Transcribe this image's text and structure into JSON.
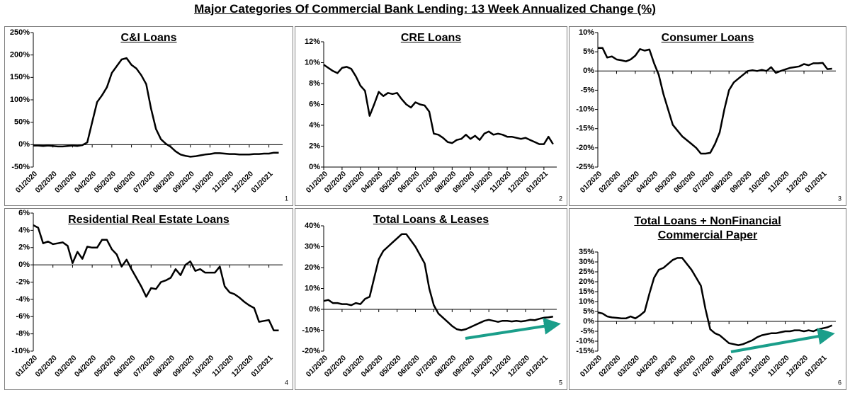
{
  "title": "Major Categories Of Commercial Bank Lending: 13 Week Annualized Change (%)",
  "chart_data": [
    {
      "type": "line",
      "title": "C&I Loans",
      "panel_label": "1",
      "color": "#000000",
      "x": [
        0,
        0.25,
        0.5,
        0.75,
        1,
        1.25,
        1.5,
        1.75,
        2,
        2.25,
        2.5,
        2.75,
        3,
        3.25,
        3.5,
        3.75,
        4,
        4.25,
        4.5,
        4.75,
        5,
        5.25,
        5.5,
        5.75,
        6,
        6.25,
        6.5,
        6.75,
        7,
        7.25,
        7.5,
        7.75,
        8,
        8.25,
        8.5,
        8.75,
        9,
        9.25,
        9.5,
        9.75,
        10,
        10.25,
        10.5,
        10.75,
        11,
        11.25,
        11.5,
        11.75,
        12,
        12.25,
        12.5
      ],
      "values": [
        -2,
        -2,
        -3,
        -2,
        -3,
        -4,
        -4,
        -3,
        -2,
        -3,
        -1,
        5,
        50,
        95,
        110,
        128,
        160,
        175,
        190,
        193,
        178,
        170,
        155,
        135,
        80,
        35,
        12,
        2,
        -5,
        -15,
        -22,
        -25,
        -27,
        -26,
        -24,
        -22,
        -21,
        -19,
        -19,
        -20,
        -21,
        -21,
        -22,
        -22,
        -22,
        -21,
        -21,
        -20,
        -20,
        -18,
        -18
      ],
      "xlim": [
        0,
        12.7
      ],
      "xticks": [
        {
          "value": 0,
          "label": "01/2020"
        },
        {
          "value": 1,
          "label": "02/2020"
        },
        {
          "value": 2,
          "label": "03/2020"
        },
        {
          "value": 3,
          "label": "04/2020"
        },
        {
          "value": 4,
          "label": "05/2020"
        },
        {
          "value": 5,
          "label": "06/2020"
        },
        {
          "value": 6,
          "label": "07/2020"
        },
        {
          "value": 7,
          "label": "08/2020"
        },
        {
          "value": 8,
          "label": "09/2020"
        },
        {
          "value": 9,
          "label": "10/2020"
        },
        {
          "value": 10,
          "label": "11/2020"
        },
        {
          "value": 11,
          "label": "12/2020"
        },
        {
          "value": 12,
          "label": "01/2021"
        }
      ],
      "ylim": [
        -50,
        250
      ],
      "yticks": [
        {
          "value": -50,
          "label": "-50%"
        },
        {
          "value": 0,
          "label": "0%"
        },
        {
          "value": 50,
          "label": "50%"
        },
        {
          "value": 100,
          "label": "100%"
        },
        {
          "value": 150,
          "label": "150%"
        },
        {
          "value": 200,
          "label": "200%"
        },
        {
          "value": 250,
          "label": "250%"
        }
      ]
    },
    {
      "type": "line",
      "title": "CRE Loans",
      "panel_label": "2",
      "color": "#000000",
      "x": [
        0,
        0.25,
        0.5,
        0.75,
        1,
        1.25,
        1.5,
        1.75,
        2,
        2.25,
        2.5,
        2.75,
        3,
        3.25,
        3.5,
        3.75,
        4,
        4.25,
        4.5,
        4.75,
        5,
        5.25,
        5.5,
        5.75,
        6,
        6.25,
        6.5,
        6.75,
        7,
        7.25,
        7.5,
        7.75,
        8,
        8.25,
        8.5,
        8.75,
        9,
        9.25,
        9.5,
        9.75,
        10,
        10.25,
        10.5,
        10.75,
        11,
        11.25,
        11.5,
        11.75,
        12,
        12.25,
        12.5
      ],
      "values": [
        9.8,
        9.5,
        9.2,
        9.0,
        9.5,
        9.6,
        9.4,
        8.7,
        7.8,
        7.3,
        4.9,
        6.0,
        7.2,
        6.8,
        7.1,
        7.0,
        7.1,
        6.5,
        6.0,
        5.7,
        6.2,
        6.0,
        5.9,
        5.3,
        3.2,
        3.1,
        2.8,
        2.4,
        2.3,
        2.6,
        2.7,
        3.1,
        2.7,
        3.0,
        2.6,
        3.2,
        3.4,
        3.1,
        3.2,
        3.1,
        2.9,
        2.9,
        2.8,
        2.7,
        2.8,
        2.6,
        2.4,
        2.2,
        2.2,
        2.9,
        2.2
      ],
      "xlim": [
        0,
        12.7
      ],
      "xticks": [
        {
          "value": 0,
          "label": "01/2020"
        },
        {
          "value": 1,
          "label": "02/2020"
        },
        {
          "value": 2,
          "label": "03/2020"
        },
        {
          "value": 3,
          "label": "04/2020"
        },
        {
          "value": 4,
          "label": "05/2020"
        },
        {
          "value": 5,
          "label": "06/2020"
        },
        {
          "value": 6,
          "label": "07/2020"
        },
        {
          "value": 7,
          "label": "08/2020"
        },
        {
          "value": 8,
          "label": "09/2020"
        },
        {
          "value": 9,
          "label": "10/2020"
        },
        {
          "value": 10,
          "label": "11/2020"
        },
        {
          "value": 11,
          "label": "12/2020"
        },
        {
          "value": 12,
          "label": "01/2021"
        }
      ],
      "ylim": [
        0,
        12
      ],
      "yticks": [
        {
          "value": 0,
          "label": "0%"
        },
        {
          "value": 2,
          "label": "2%"
        },
        {
          "value": 4,
          "label": "4%"
        },
        {
          "value": 6,
          "label": "6%"
        },
        {
          "value": 8,
          "label": "8%"
        },
        {
          "value": 10,
          "label": "10%"
        },
        {
          "value": 12,
          "label": "12%"
        }
      ]
    },
    {
      "type": "line",
      "title": "Consumer Loans",
      "panel_label": "3",
      "color": "#000000",
      "x": [
        0,
        0.25,
        0.5,
        0.75,
        1,
        1.25,
        1.5,
        1.75,
        2,
        2.25,
        2.5,
        2.75,
        3,
        3.25,
        3.5,
        3.75,
        4,
        4.25,
        4.5,
        4.75,
        5,
        5.25,
        5.5,
        5.75,
        6,
        6.25,
        6.5,
        6.75,
        7,
        7.25,
        7.5,
        7.75,
        8,
        8.25,
        8.5,
        8.75,
        9,
        9.25,
        9.5,
        9.75,
        10,
        10.25,
        10.5,
        10.75,
        11,
        11.25,
        11.5,
        11.75,
        12,
        12.25,
        12.5
      ],
      "values": [
        6,
        6,
        3.5,
        3.8,
        3,
        2.8,
        2.5,
        3,
        4,
        5.7,
        5.3,
        5.6,
        2,
        -1,
        -6,
        -10,
        -14,
        -15.5,
        -17,
        -18,
        -19,
        -20,
        -21.5,
        -21.5,
        -21.3,
        -19,
        -16,
        -10,
        -5,
        -3,
        -2,
        -1,
        0,
        0.2,
        0,
        0.3,
        0,
        1,
        -0.5,
        0,
        0.4,
        0.8,
        1,
        1.2,
        1.8,
        1.5,
        2,
        2,
        2.1,
        0.5,
        0.6
      ],
      "xlim": [
        0,
        12.7
      ],
      "xticks": [
        {
          "value": 0,
          "label": "01/2020"
        },
        {
          "value": 1,
          "label": "02/2020"
        },
        {
          "value": 2,
          "label": "03/2020"
        },
        {
          "value": 3,
          "label": "04/2020"
        },
        {
          "value": 4,
          "label": "05/2020"
        },
        {
          "value": 5,
          "label": "06/2020"
        },
        {
          "value": 6,
          "label": "07/2020"
        },
        {
          "value": 7,
          "label": "08/2020"
        },
        {
          "value": 8,
          "label": "09/2020"
        },
        {
          "value": 9,
          "label": "10/2020"
        },
        {
          "value": 10,
          "label": "11/2020"
        },
        {
          "value": 11,
          "label": "12/2020"
        },
        {
          "value": 12,
          "label": "01/2021"
        }
      ],
      "ylim": [
        -25,
        10
      ],
      "yticks": [
        {
          "value": -25,
          "label": "-25%"
        },
        {
          "value": -20,
          "label": "-20%"
        },
        {
          "value": -15,
          "label": "-15%"
        },
        {
          "value": -10,
          "label": "-10%"
        },
        {
          "value": -5,
          "label": "-5%"
        },
        {
          "value": 0,
          "label": "0%"
        },
        {
          "value": 5,
          "label": "5%"
        },
        {
          "value": 10,
          "label": "10%"
        }
      ]
    },
    {
      "type": "line",
      "title": "Residential Real Estate Loans",
      "panel_label": "4",
      "color": "#000000",
      "x": [
        0,
        0.25,
        0.5,
        0.75,
        1,
        1.25,
        1.5,
        1.75,
        2,
        2.25,
        2.5,
        2.75,
        3,
        3.25,
        3.5,
        3.75,
        4,
        4.25,
        4.5,
        4.75,
        5,
        5.25,
        5.5,
        5.75,
        6,
        6.25,
        6.5,
        6.75,
        7,
        7.25,
        7.5,
        7.75,
        8,
        8.25,
        8.5,
        8.75,
        9,
        9.25,
        9.5,
        9.75,
        10,
        10.25,
        10.5,
        10.75,
        11,
        11.25,
        11.5,
        11.75,
        12,
        12.25,
        12.5
      ],
      "values": [
        4.6,
        4.3,
        2.5,
        2.7,
        2.4,
        2.5,
        2.6,
        2.2,
        0.2,
        1.5,
        0.7,
        2.1,
        2.0,
        2.0,
        2.9,
        2.9,
        1.8,
        1.2,
        -0.2,
        0.6,
        -0.5,
        -1.5,
        -2.5,
        -3.7,
        -2.7,
        -2.8,
        -2.0,
        -1.8,
        -1.5,
        -0.5,
        -1.2,
        0,
        0.4,
        -0.7,
        -0.5,
        -0.9,
        -0.9,
        -0.9,
        -0.2,
        -2.5,
        -3.2,
        -3.4,
        -3.8,
        -4.3,
        -4.7,
        -5.0,
        -6.6,
        -6.5,
        -6.4,
        -7.6,
        -7.6
      ],
      "xlim": [
        0,
        12.7
      ],
      "xticks": [
        {
          "value": 0,
          "label": "01/2020"
        },
        {
          "value": 1,
          "label": "02/2020"
        },
        {
          "value": 2,
          "label": "03/2020"
        },
        {
          "value": 3,
          "label": "04/2020"
        },
        {
          "value": 4,
          "label": "05/2020"
        },
        {
          "value": 5,
          "label": "06/2020"
        },
        {
          "value": 6,
          "label": "07/2020"
        },
        {
          "value": 7,
          "label": "08/2020"
        },
        {
          "value": 8,
          "label": "09/2020"
        },
        {
          "value": 9,
          "label": "10/2020"
        },
        {
          "value": 10,
          "label": "11/2020"
        },
        {
          "value": 11,
          "label": "12/2020"
        },
        {
          "value": 12,
          "label": "01/2021"
        }
      ],
      "ylim": [
        -10,
        6
      ],
      "yticks": [
        {
          "value": -10,
          "label": "-10%"
        },
        {
          "value": -8,
          "label": "-8%"
        },
        {
          "value": -6,
          "label": "-6%"
        },
        {
          "value": -4,
          "label": "-4%"
        },
        {
          "value": -2,
          "label": "-2%"
        },
        {
          "value": 0,
          "label": "0%"
        },
        {
          "value": 2,
          "label": "2%"
        },
        {
          "value": 4,
          "label": "4%"
        },
        {
          "value": 6,
          "label": "6%"
        }
      ]
    },
    {
      "type": "line",
      "title": "Total Loans & Leases",
      "panel_label": "5",
      "color": "#000000",
      "x": [
        0,
        0.25,
        0.5,
        0.75,
        1,
        1.25,
        1.5,
        1.75,
        2,
        2.25,
        2.5,
        2.75,
        3,
        3.25,
        3.5,
        3.75,
        4,
        4.25,
        4.5,
        4.75,
        5,
        5.25,
        5.5,
        5.75,
        6,
        6.25,
        6.5,
        6.75,
        7,
        7.25,
        7.5,
        7.75,
        8,
        8.25,
        8.5,
        8.75,
        9,
        9.25,
        9.5,
        9.75,
        10,
        10.25,
        10.5,
        10.75,
        11,
        11.25,
        11.5,
        11.75,
        12,
        12.25,
        12.5
      ],
      "values": [
        4,
        4.5,
        3,
        3,
        2.5,
        2.5,
        2,
        3,
        2.5,
        5,
        6,
        15,
        24,
        28,
        30,
        32,
        34,
        36,
        36,
        33,
        30,
        26,
        22,
        10,
        2,
        -2,
        -4,
        -6,
        -8,
        -9.5,
        -10,
        -9.5,
        -8.5,
        -7.5,
        -6.5,
        -5.5,
        -5,
        -5.5,
        -6,
        -5.5,
        -5.5,
        -5.8,
        -5.5,
        -5.8,
        -5.5,
        -5,
        -5.2,
        -4.5,
        -4,
        -3.8,
        -3.5
      ],
      "xlim": [
        0,
        12.7
      ],
      "xticks": [
        {
          "value": 0,
          "label": "01/2020"
        },
        {
          "value": 1,
          "label": "02/2020"
        },
        {
          "value": 2,
          "label": "03/2020"
        },
        {
          "value": 3,
          "label": "04/2020"
        },
        {
          "value": 4,
          "label": "05/2020"
        },
        {
          "value": 5,
          "label": "06/2020"
        },
        {
          "value": 6,
          "label": "07/2020"
        },
        {
          "value": 7,
          "label": "08/2020"
        },
        {
          "value": 8,
          "label": "09/2020"
        },
        {
          "value": 9,
          "label": "10/2020"
        },
        {
          "value": 10,
          "label": "11/2020"
        },
        {
          "value": 11,
          "label": "12/2020"
        },
        {
          "value": 12,
          "label": "01/2021"
        }
      ],
      "ylim": [
        -20,
        40
      ],
      "yticks": [
        {
          "value": -20,
          "label": "-20%"
        },
        {
          "value": -10,
          "label": "-10%"
        },
        {
          "value": 0,
          "label": "0%"
        },
        {
          "value": 10,
          "label": "10%"
        },
        {
          "value": 20,
          "label": "20%"
        },
        {
          "value": 30,
          "label": "30%"
        },
        {
          "value": 40,
          "label": "40%"
        }
      ]
    },
    {
      "type": "line",
      "title": "Total Loans + NonFinancial Commercial Paper",
      "panel_label": "6",
      "color": "#000000",
      "x": [
        0,
        0.25,
        0.5,
        0.75,
        1,
        1.25,
        1.5,
        1.75,
        2,
        2.25,
        2.5,
        2.75,
        3,
        3.25,
        3.5,
        3.75,
        4,
        4.25,
        4.5,
        4.75,
        5,
        5.25,
        5.5,
        5.75,
        6,
        6.25,
        6.5,
        6.75,
        7,
        7.25,
        7.5,
        7.75,
        8,
        8.25,
        8.5,
        8.75,
        9,
        9.25,
        9.5,
        9.75,
        10,
        10.25,
        10.5,
        10.75,
        11,
        11.25,
        11.5,
        11.75,
        12,
        12.25,
        12.5
      ],
      "values": [
        4.5,
        4,
        2.5,
        2,
        1.8,
        1.5,
        1.5,
        2.5,
        1.5,
        3,
        5,
        14,
        22,
        26,
        27,
        29,
        31,
        32,
        32,
        29,
        26,
        22,
        18,
        6,
        -4,
        -6,
        -7,
        -9,
        -11,
        -11.5,
        -12,
        -11.5,
        -10.5,
        -9.5,
        -8,
        -7,
        -6.5,
        -6,
        -6,
        -5.5,
        -5,
        -5,
        -4.5,
        -4.5,
        -5,
        -4.5,
        -5,
        -4,
        -3.5,
        -3,
        -2
      ],
      "xlim": [
        0,
        12.7
      ],
      "xticks": [
        {
          "value": 0,
          "label": "01/2020"
        },
        {
          "value": 1,
          "label": "02/2020"
        },
        {
          "value": 2,
          "label": "03/2020"
        },
        {
          "value": 3,
          "label": "04/2020"
        },
        {
          "value": 4,
          "label": "05/2020"
        },
        {
          "value": 5,
          "label": "06/2020"
        },
        {
          "value": 6,
          "label": "07/2020"
        },
        {
          "value": 7,
          "label": "08/2020"
        },
        {
          "value": 8,
          "label": "09/2020"
        },
        {
          "value": 9,
          "label": "10/2020"
        },
        {
          "value": 10,
          "label": "11/2020"
        },
        {
          "value": 11,
          "label": "12/2020"
        },
        {
          "value": 12,
          "label": "01/2021"
        }
      ],
      "ylim": [
        -15,
        35
      ],
      "yticks": [
        {
          "value": -15,
          "label": "-15%"
        },
        {
          "value": -10,
          "label": "-10%"
        },
        {
          "value": -5,
          "label": "-5%"
        },
        {
          "value": 0,
          "label": "0%"
        },
        {
          "value": 5,
          "label": "5%"
        },
        {
          "value": 10,
          "label": "10%"
        },
        {
          "value": 15,
          "label": "15%"
        },
        {
          "value": 20,
          "label": "20%"
        },
        {
          "value": 25,
          "label": "25%"
        },
        {
          "value": 30,
          "label": "30%"
        },
        {
          "value": 35,
          "label": "35%"
        }
      ]
    }
  ]
}
